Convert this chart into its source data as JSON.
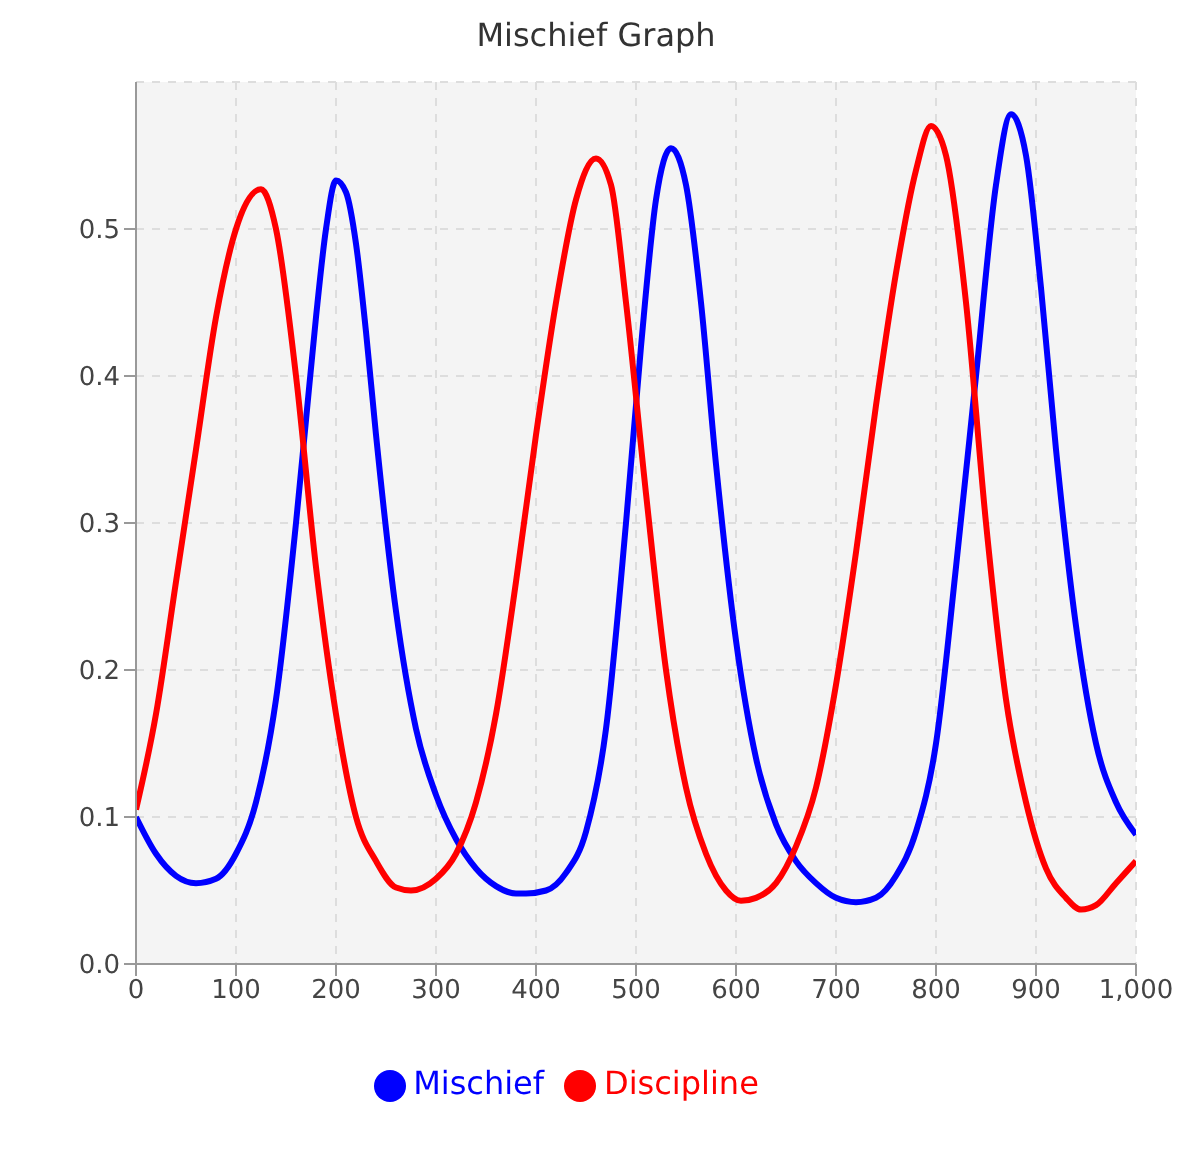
{
  "chart_data": {
    "type": "line",
    "title": "Mischief Graph",
    "xlim": [
      0,
      1000
    ],
    "ylim": [
      0,
      0.6
    ],
    "xticks": [
      0,
      100,
      200,
      300,
      400,
      500,
      600,
      700,
      800,
      900,
      {
        "value": 1000,
        "label": "1,000"
      }
    ],
    "yticks": [
      {
        "value": 0,
        "label": "0.0"
      },
      0.1,
      0.2,
      0.3,
      0.4,
      0.5
    ],
    "grid": true,
    "legend": "bottom",
    "marker": "none",
    "line_style": "solid",
    "series": [
      {
        "name": "Mischief",
        "color": "#0000ff",
        "x": [
          0,
          20,
          40,
          60,
          80,
          100,
          120,
          140,
          160,
          170,
          180,
          190,
          200,
          210,
          220,
          230,
          240,
          260,
          280,
          300,
          320,
          340,
          360,
          380,
          390,
          410,
          430,
          450,
          470,
          490,
          505,
          520,
          535,
          550,
          565,
          580,
          600,
          620,
          640,
          660,
          680,
          700,
          720,
          740,
          760,
          780,
          800,
          820,
          840,
          860,
          875,
          890,
          905,
          920,
          940,
          960,
          980,
          1000
        ],
        "values": [
          0.1,
          0.075,
          0.06,
          0.055,
          0.058,
          0.075,
          0.11,
          0.18,
          0.3,
          0.37,
          0.44,
          0.5,
          0.533,
          0.525,
          0.49,
          0.43,
          0.36,
          0.24,
          0.16,
          0.115,
          0.085,
          0.065,
          0.053,
          0.048,
          0.048,
          0.05,
          0.062,
          0.09,
          0.16,
          0.3,
          0.42,
          0.52,
          0.555,
          0.53,
          0.45,
          0.34,
          0.22,
          0.14,
          0.095,
          0.07,
          0.055,
          0.045,
          0.042,
          0.045,
          0.06,
          0.09,
          0.15,
          0.27,
          0.4,
          0.53,
          0.578,
          0.55,
          0.46,
          0.35,
          0.23,
          0.15,
          0.11,
          0.088
        ]
      },
      {
        "name": "Discipline",
        "color": "#ff0000",
        "x": [
          0,
          20,
          40,
          60,
          80,
          100,
          125,
          140,
          160,
          180,
          200,
          220,
          240,
          260,
          275,
          300,
          320,
          340,
          360,
          380,
          400,
          420,
          440,
          460,
          475,
          490,
          510,
          530,
          550,
          570,
          590,
          605,
          620,
          640,
          660,
          680,
          700,
          720,
          740,
          760,
          780,
          795,
          810,
          830,
          850,
          870,
          890,
          910,
          930,
          945,
          960,
          980,
          1000
        ],
        "values": [
          0.105,
          0.17,
          0.26,
          0.35,
          0.44,
          0.5,
          0.527,
          0.5,
          0.4,
          0.27,
          0.17,
          0.1,
          0.07,
          0.052,
          0.05,
          0.058,
          0.075,
          0.11,
          0.17,
          0.26,
          0.36,
          0.45,
          0.52,
          0.548,
          0.53,
          0.45,
          0.32,
          0.2,
          0.12,
          0.075,
          0.05,
          0.043,
          0.045,
          0.055,
          0.08,
          0.12,
          0.19,
          0.28,
          0.38,
          0.47,
          0.54,
          0.57,
          0.55,
          0.45,
          0.3,
          0.18,
          0.11,
          0.065,
          0.045,
          0.037,
          0.04,
          0.055,
          0.07
        ]
      }
    ]
  }
}
